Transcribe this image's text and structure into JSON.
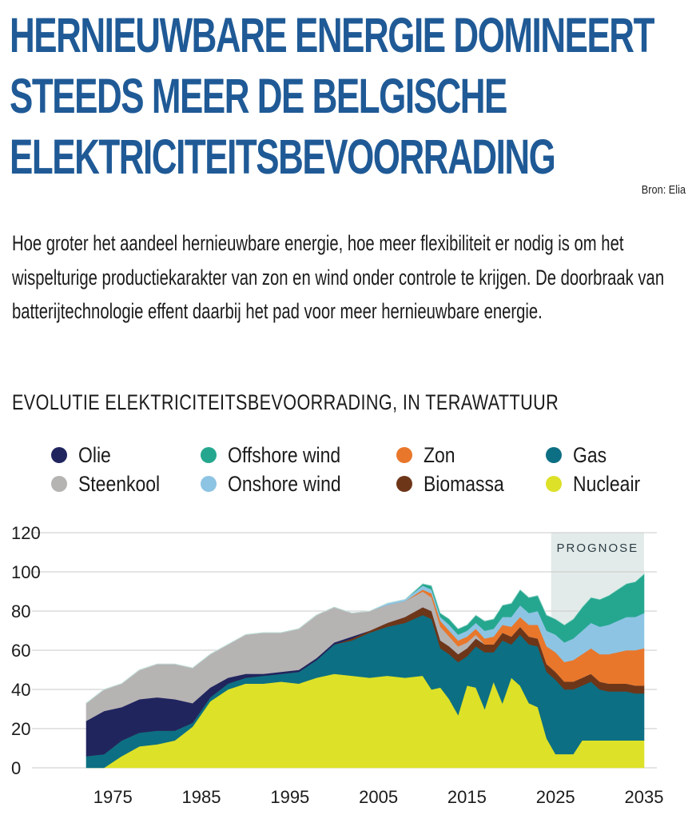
{
  "header": {
    "title_lines": [
      "HERNIEUWBARE ENERGIE DOMINEERT",
      "STEEDS MEER DE BELGISCHE",
      "ELEKTRICITEITSBEVOORRADING"
    ],
    "source": "Bron: Elia"
  },
  "intro": "Hoe groter het aandeel hernieuwbare energie, hoe meer flexibiliteit er nodig is om het wispelturige productiekarakter van zon en wind onder controle te krijgen. De doorbraak van batterijtechnologie effent daarbij het pad voor meer hernieuwbare energie.",
  "chart_heading": "EVOLUTIE ELEKTRICITEITSBEVOORRADING, IN TERAWATTUUR",
  "legend": [
    {
      "name": "Olie",
      "color": "#21255e"
    },
    {
      "name": "Offshore wind",
      "color": "#25a78f"
    },
    {
      "name": "Zon",
      "color": "#e8772b"
    },
    {
      "name": "Gas",
      "color": "#0d6f83"
    },
    {
      "name": "Steenkool",
      "color": "#b6b3b3"
    },
    {
      "name": "Onshore wind",
      "color": "#8dc4e3"
    },
    {
      "name": "Biomassa",
      "color": "#6e3619"
    },
    {
      "name": "Nucleair",
      "color": "#dde128"
    }
  ],
  "chart_data": {
    "type": "area",
    "stacked": true,
    "title": "EVOLUTIE ELEKTRICITEITSBEVOORRADING, IN TERAWATTUUR",
    "xlabel": "",
    "ylabel": "",
    "ylim": [
      0,
      120
    ],
    "xlim": [
      1972,
      2035
    ],
    "yticks": [
      "0",
      "20",
      "40",
      "60",
      "80",
      "100",
      "120"
    ],
    "xticks": [
      "1975",
      "1985",
      "1995",
      "2005",
      "2015",
      "2025",
      "2035"
    ],
    "annotation": {
      "label": "PROGNOSE",
      "from": 2024.5,
      "to": 2035
    },
    "x": [
      1972,
      1974,
      1976,
      1978,
      1980,
      1982,
      1984,
      1986,
      1988,
      1990,
      1992,
      1994,
      1996,
      1998,
      2000,
      2002,
      2004,
      2006,
      2008,
      2010,
      2011,
      2012,
      2013,
      2014,
      2015,
      2016,
      2017,
      2018,
      2019,
      2020,
      2021,
      2022,
      2023,
      2024,
      2025,
      2026,
      2027,
      2028,
      2029,
      2030,
      2031,
      2032,
      2033,
      2034,
      2035
    ],
    "series": [
      {
        "name": "Nucleair",
        "color": "#dde128",
        "values": [
          0,
          0,
          6,
          11,
          12,
          14,
          21,
          34,
          40,
          43,
          43,
          44,
          43,
          46,
          48,
          47,
          46,
          47,
          46,
          47,
          40,
          41,
          35,
          27,
          42,
          41,
          30,
          44,
          33,
          46,
          42,
          33,
          31,
          15,
          7,
          7,
          7,
          14,
          14,
          14,
          14,
          14,
          14,
          14,
          14
        ]
      },
      {
        "name": "Gas",
        "color": "#0d6f83",
        "values": [
          6,
          7,
          8,
          7,
          7,
          5,
          2,
          2,
          3,
          3,
          4,
          4,
          6,
          9,
          15,
          18,
          23,
          25,
          28,
          31,
          36,
          20,
          23,
          27,
          15,
          21,
          29,
          15,
          32,
          17,
          26,
          30,
          31,
          34,
          38,
          33,
          33,
          28,
          30,
          26,
          25,
          25,
          25,
          24,
          24
        ]
      },
      {
        "name": "Biomassa",
        "color": "#6e3619",
        "values": [
          0,
          0,
          0,
          0,
          0,
          0,
          0,
          0,
          0,
          0,
          0,
          0,
          0,
          0,
          0,
          1,
          1,
          2,
          3,
          4,
          4,
          4,
          4,
          4,
          4,
          4,
          4,
          4,
          4,
          4,
          4,
          4,
          4,
          4,
          4,
          4,
          4,
          4,
          4,
          4,
          4,
          4,
          4,
          4,
          4
        ]
      },
      {
        "name": "Olie",
        "color": "#21255e",
        "values": [
          18,
          22,
          17,
          17,
          17,
          16,
          10,
          5,
          3,
          2,
          1,
          1,
          1,
          1,
          1,
          1,
          0,
          0,
          0,
          0,
          0,
          0,
          0,
          0,
          0,
          0,
          0,
          0,
          0,
          0,
          0,
          0,
          0,
          0,
          0,
          0,
          0,
          0,
          0,
          0,
          0,
          0,
          0,
          0,
          0
        ]
      },
      {
        "name": "Steenkool",
        "color": "#b6b3b3",
        "values": [
          9,
          11,
          12,
          15,
          17,
          18,
          18,
          17,
          17,
          20,
          21,
          20,
          21,
          22,
          18,
          12,
          10,
          9,
          8,
          8,
          7,
          7,
          5,
          4,
          3,
          2,
          0,
          0,
          0,
          0,
          0,
          0,
          0,
          0,
          0,
          0,
          0,
          0,
          0,
          0,
          0,
          0,
          0,
          0,
          0
        ]
      },
      {
        "name": "Zon",
        "color": "#e8772b",
        "values": [
          0,
          0,
          0,
          0,
          0,
          0,
          0,
          0,
          0,
          0,
          0,
          0,
          0,
          0,
          0,
          0,
          0,
          0,
          0,
          1,
          2,
          3,
          3,
          3,
          3,
          3,
          3,
          4,
          4,
          5,
          5,
          6,
          7,
          9,
          10,
          10,
          11,
          12,
          13,
          14,
          15,
          16,
          17,
          18,
          19
        ]
      },
      {
        "name": "Onshore wind",
        "color": "#8dc4e3",
        "values": [
          0,
          0,
          0,
          0,
          0,
          0,
          0,
          0,
          0,
          0,
          0,
          0,
          0,
          0,
          0,
          0,
          0,
          1,
          1,
          2,
          2,
          2,
          3,
          3,
          3,
          3,
          4,
          4,
          4,
          5,
          6,
          6,
          7,
          8,
          9,
          10,
          11,
          12,
          13,
          14,
          15,
          16,
          17,
          17,
          18
        ]
      },
      {
        "name": "Offshore wind",
        "color": "#25a78f",
        "values": [
          0,
          0,
          0,
          0,
          0,
          0,
          0,
          0,
          0,
          0,
          0,
          0,
          0,
          0,
          0,
          0,
          0,
          0,
          0,
          1,
          2,
          2,
          3,
          3,
          3,
          4,
          5,
          5,
          6,
          7,
          8,
          8,
          8,
          8,
          8,
          9,
          10,
          12,
          13,
          14,
          15,
          16,
          17,
          18,
          20
        ]
      }
    ]
  }
}
